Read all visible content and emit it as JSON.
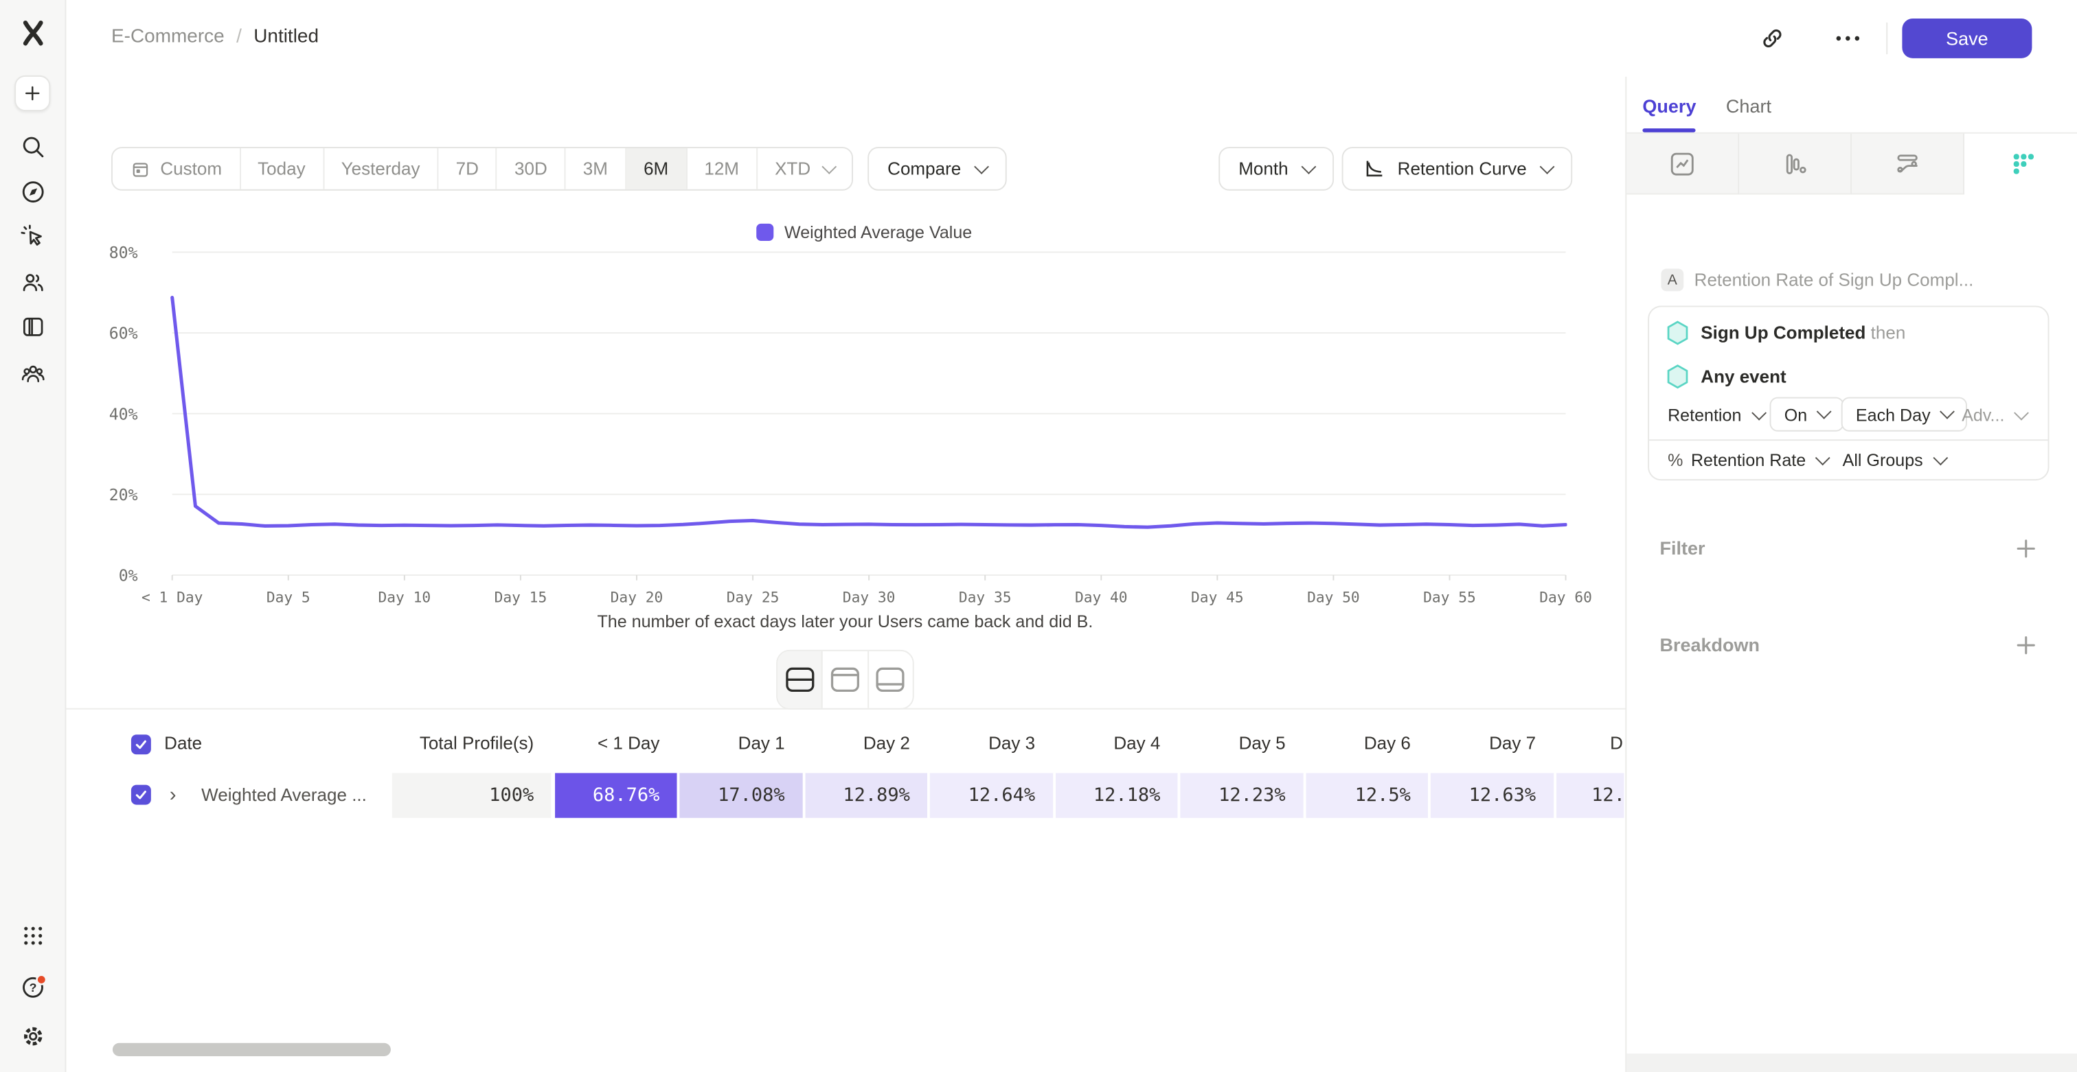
{
  "header": {
    "breadcrumb": {
      "project": "E-Commerce",
      "separator": "/",
      "title": "Untitled"
    },
    "save_button": "Save",
    "icons": [
      "link-icon",
      "more-icon"
    ]
  },
  "sidebar": {
    "top_icons": [
      "mixpanel-logo",
      "create",
      "search",
      "discover",
      "events",
      "users",
      "boards",
      "cohorts"
    ],
    "bottom_icons": [
      "apps",
      "help",
      "settings"
    ],
    "help_has_notification": true
  },
  "toolbar": {
    "date_ranges": [
      "Custom",
      "Today",
      "Yesterday",
      "7D",
      "30D",
      "3M",
      "6M",
      "12M",
      "XTD"
    ],
    "selected_range": "6M",
    "compare_label": "Compare",
    "granularity_label": "Month",
    "chart_type_label": "Retention Curve"
  },
  "chart_data": {
    "type": "line",
    "caption": "The number of exact days later your Users came back and did B.",
    "x_tick_labels": [
      "< 1 Day",
      "Day 5",
      "Day 10",
      "Day 15",
      "Day 20",
      "Day 25",
      "Day 30",
      "Day 35",
      "Day 40",
      "Day 45",
      "Day 50",
      "Day 55",
      "Day 60"
    ],
    "x_range_days": [
      0,
      60
    ],
    "y_ticks": [
      0,
      20,
      40,
      60,
      80
    ],
    "y_tick_suffix": "%",
    "ylim": [
      0,
      80
    ],
    "grid": "horizontal",
    "legend_position": "top-center",
    "series": [
      {
        "name": "Weighted Average Value",
        "color": "#6F59EC",
        "values": [
          68.76,
          17.08,
          12.89,
          12.64,
          12.18,
          12.23,
          12.5,
          12.63,
          12.4,
          12.28,
          12.35,
          12.3,
          12.24,
          12.3,
          12.42,
          12.3,
          12.2,
          12.32,
          12.4,
          12.34,
          12.22,
          12.3,
          12.52,
          12.9,
          13.3,
          13.52,
          13.0,
          12.62,
          12.5,
          12.55,
          12.6,
          12.5,
          12.45,
          12.5,
          12.56,
          12.5,
          12.44,
          12.4,
          12.46,
          12.5,
          12.3,
          12.0,
          11.88,
          12.2,
          12.7,
          12.92,
          12.8,
          12.7,
          12.82,
          12.9,
          12.78,
          12.6,
          12.4,
          12.5,
          12.62,
          12.5,
          12.3,
          12.4,
          12.6,
          12.2,
          12.5
        ]
      }
    ]
  },
  "view_switcher": {
    "options": [
      "split-view",
      "chart-view",
      "table-view"
    ],
    "active": "split-view"
  },
  "table": {
    "select_all_checked": true,
    "columns": [
      "Date",
      "Total Profile(s)",
      "< 1 Day",
      "Day 1",
      "Day 2",
      "Day 3",
      "Day 4",
      "Day 5",
      "Day 6",
      "Day 7",
      "D"
    ],
    "rows": [
      {
        "checked": true,
        "name": "Weighted Average ...",
        "values": [
          "100%",
          "68.76%",
          "17.08%",
          "12.89%",
          "12.64%",
          "12.18%",
          "12.23%",
          "12.5%",
          "12.63%",
          "12."
        ]
      }
    ]
  },
  "panel": {
    "tabs": [
      {
        "label": "Query",
        "active": true
      },
      {
        "label": "Chart",
        "active": false
      }
    ],
    "report_tabs": [
      "insights",
      "funnels",
      "flows",
      "retention"
    ],
    "active_report_tab": "retention",
    "query": {
      "step_badge": "A",
      "step_title": "Retention Rate of Sign Up Compl...",
      "event_a": "Sign Up Completed",
      "event_a_suffix": "then",
      "event_b": "Any event",
      "retention_label": "Retention",
      "on_label": "On",
      "each_label": "Each Day",
      "adv_label": "Adv...",
      "metric_prefix": "%",
      "metric_label": "Retention Rate",
      "groups_label": "All Groups"
    },
    "filter": {
      "label": "Filter"
    },
    "breakdown": {
      "label": "Breakdown"
    }
  },
  "colors": {
    "accent_purple": "#5348D1",
    "line_purple": "#6F59EC",
    "teal": "#3ECFBB",
    "cell_full": "#6C54E8",
    "cell_high": "#D8D2F5",
    "cell_mid": "#E8E4FA",
    "cell_low": "#EFECFC"
  }
}
